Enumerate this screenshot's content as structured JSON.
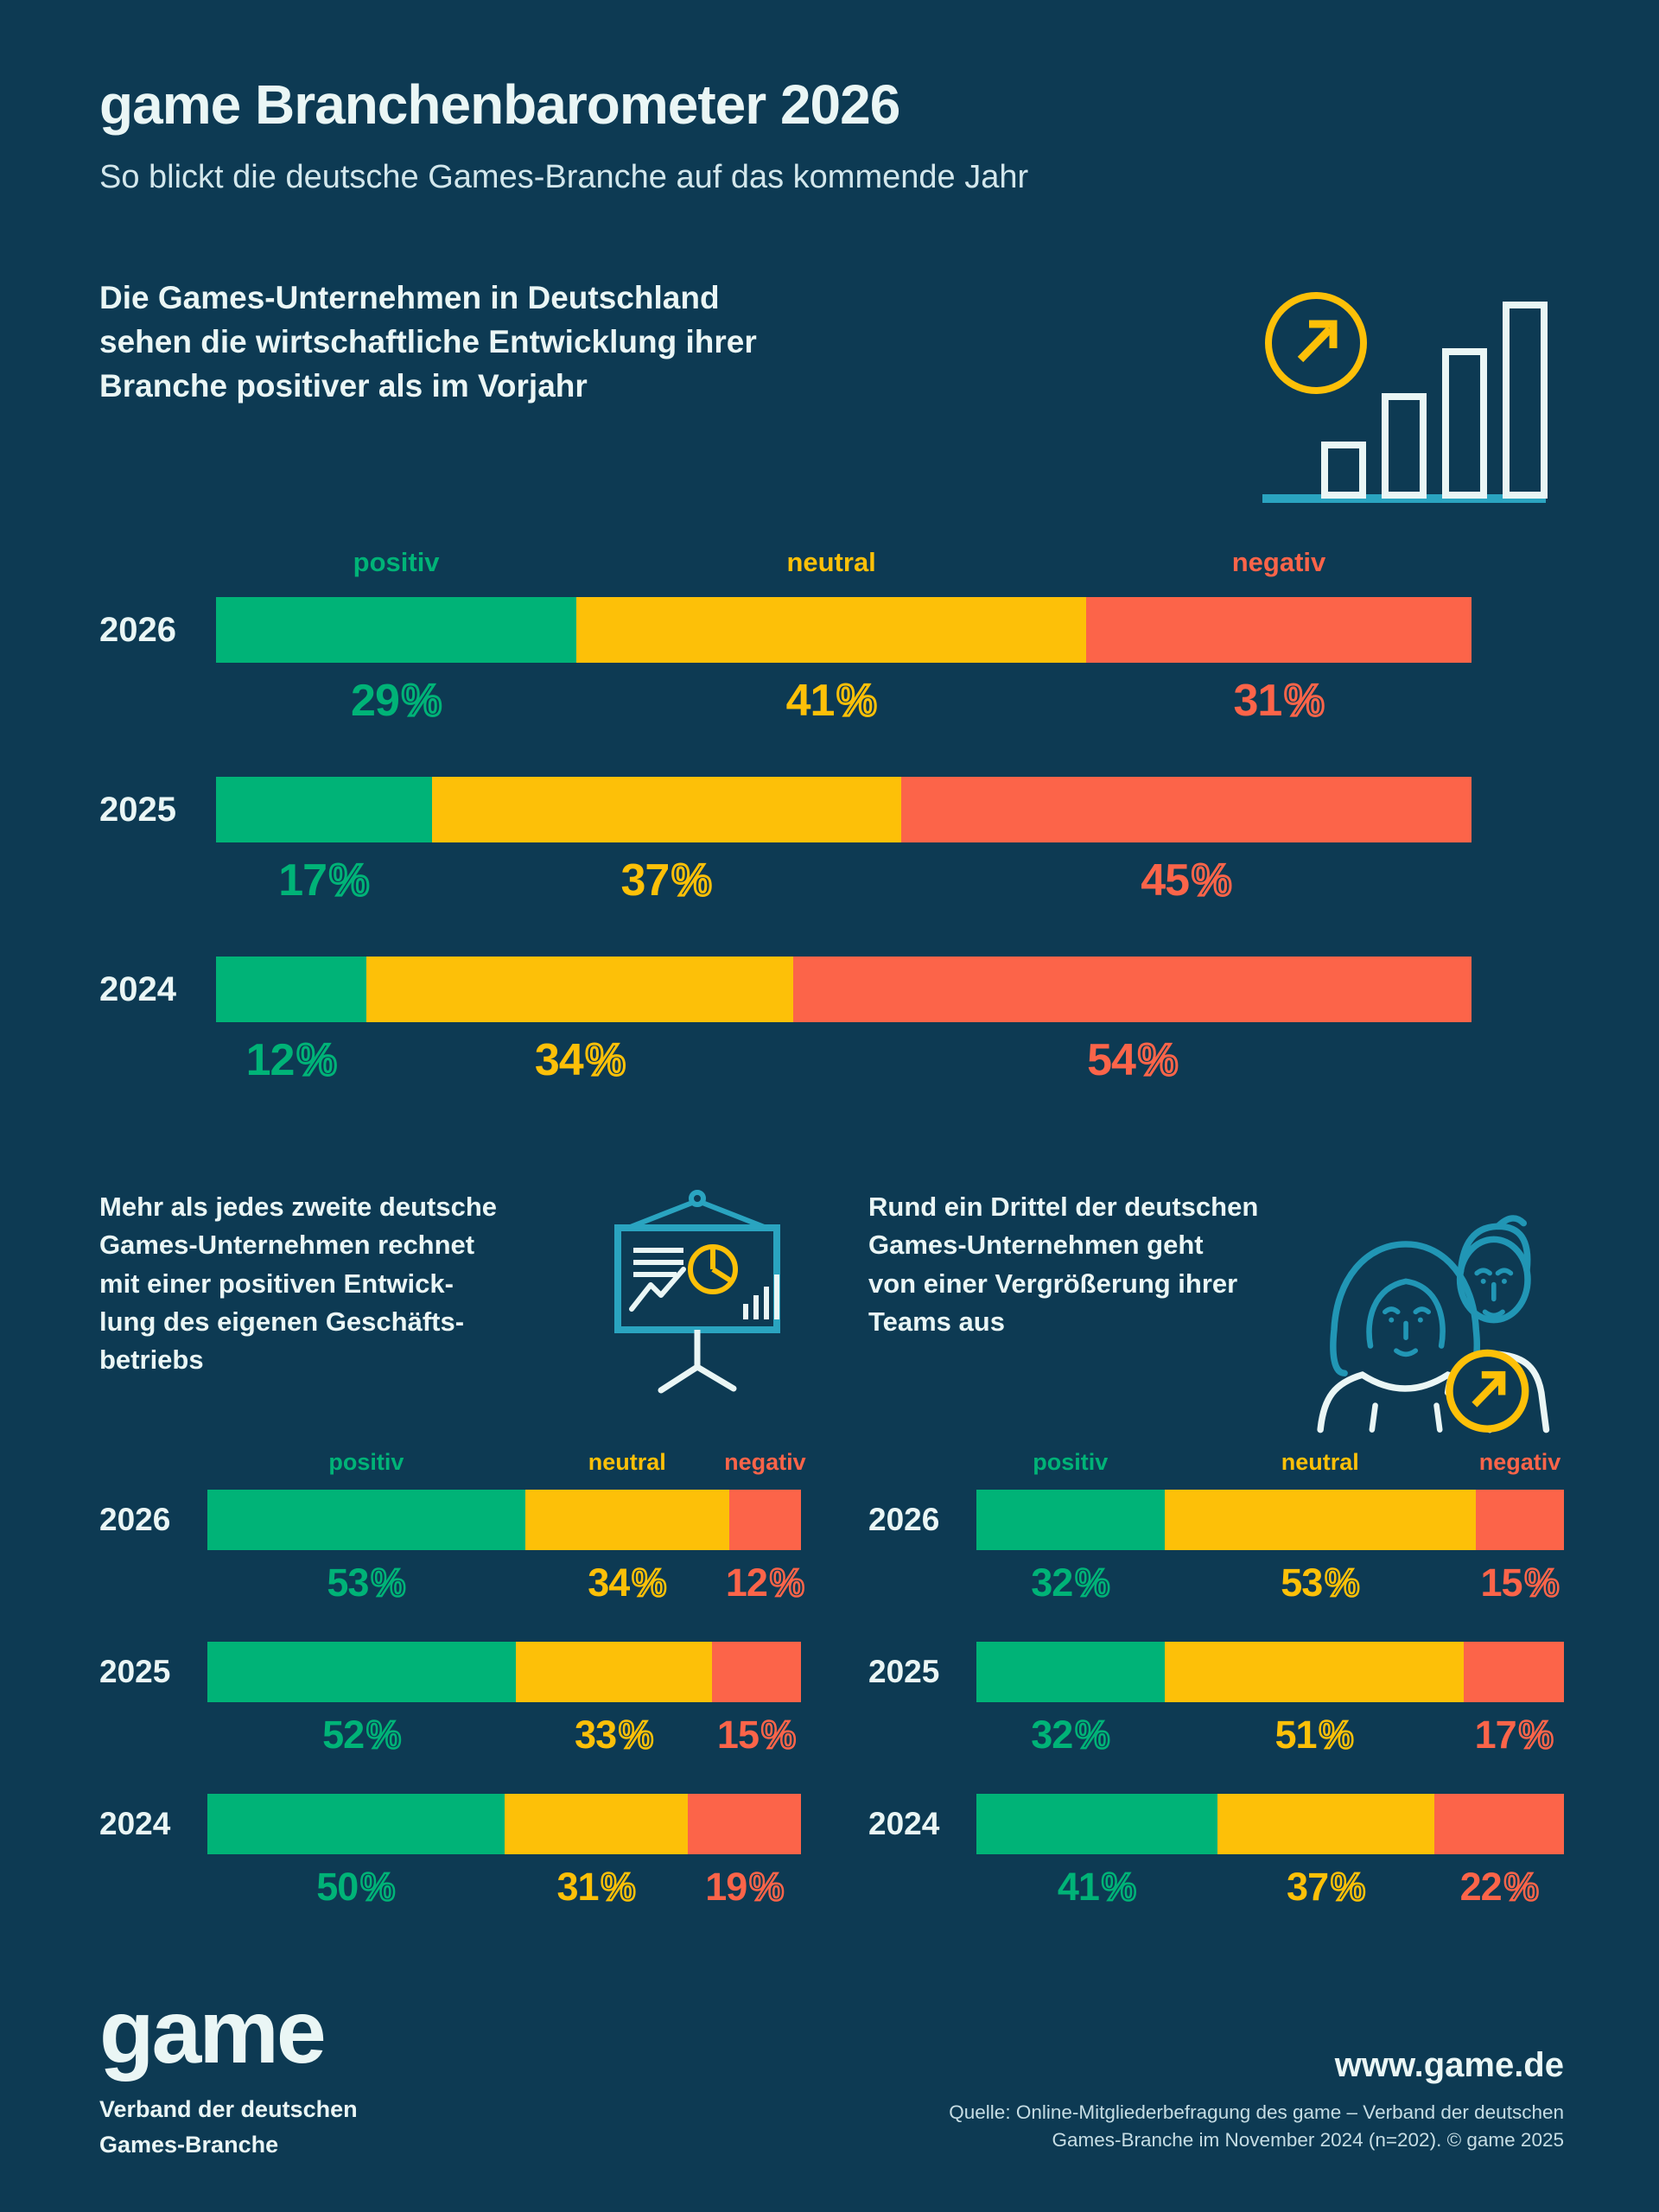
{
  "title": "game Branchenbarometer 2026",
  "subtitle": "So blickt die deutsche Games-Branche auf das kommende Jahr",
  "colors": {
    "background": "#0d3a53",
    "text": "#eaf6f5",
    "positive": "#00b377",
    "neutral": "#fdc008",
    "negative": "#fc6449",
    "teal_accent": "#2aa4c0"
  },
  "legend_labels": {
    "positiv": "positiv",
    "neutral": "neutral",
    "negativ": "negativ"
  },
  "unit": "%",
  "chart_data": [
    {
      "id": "branche",
      "type": "bar",
      "stacked": true,
      "orientation": "horizontal",
      "headline": "Die Games-Unternehmen in Deutschland\nsehen die wirtschaftliche Entwicklung ihrer\nBranche positiver als im Vorjahr",
      "icon": "growth-trend-icon",
      "legend_position": "top",
      "categories": [
        "2026",
        "2025",
        "2024"
      ],
      "series": [
        {
          "name": "positiv",
          "color": "#00b377",
          "values": [
            29,
            17,
            12
          ]
        },
        {
          "name": "neutral",
          "color": "#fdc008",
          "values": [
            41,
            37,
            34
          ]
        },
        {
          "name": "negativ",
          "color": "#fc6449",
          "values": [
            31,
            45,
            54
          ]
        }
      ]
    },
    {
      "id": "geschaeftsbetrieb",
      "type": "bar",
      "stacked": true,
      "orientation": "horizontal",
      "headline": "Mehr als jedes zweite deutsche\nGames-Unternehmen rechnet\nmit einer positiven Entwick-\nlung des eigenen Geschäfts-\nbetriebs",
      "icon": "presentation-board-icon",
      "legend_position": "top",
      "categories": [
        "2026",
        "2025",
        "2024"
      ],
      "series": [
        {
          "name": "positiv",
          "color": "#00b377",
          "values": [
            53,
            52,
            50
          ]
        },
        {
          "name": "neutral",
          "color": "#fdc008",
          "values": [
            34,
            33,
            31
          ]
        },
        {
          "name": "negativ",
          "color": "#fc6449",
          "values": [
            12,
            15,
            19
          ]
        }
      ]
    },
    {
      "id": "teams",
      "type": "bar",
      "stacked": true,
      "orientation": "horizontal",
      "headline": "Rund ein Drittel der deutschen\nGames-Unternehmen geht\nvon einer Vergrößerung ihrer\nTeams aus",
      "icon": "team-growth-icon",
      "legend_position": "top",
      "categories": [
        "2026",
        "2025",
        "2024"
      ],
      "series": [
        {
          "name": "positiv",
          "color": "#00b377",
          "values": [
            32,
            32,
            41
          ]
        },
        {
          "name": "neutral",
          "color": "#fdc008",
          "values": [
            53,
            51,
            37
          ]
        },
        {
          "name": "negativ",
          "color": "#fc6449",
          "values": [
            15,
            17,
            22
          ]
        }
      ]
    }
  ],
  "footer": {
    "logo": "game",
    "logo_tagline": "Verband der deutschen\nGames-Branche",
    "website": "www.game.de",
    "source": "Quelle: Online-Mitgliederbefragung des game – Verband der deutschen\nGames-Branche im November 2024 (n=202). © game 2025"
  }
}
